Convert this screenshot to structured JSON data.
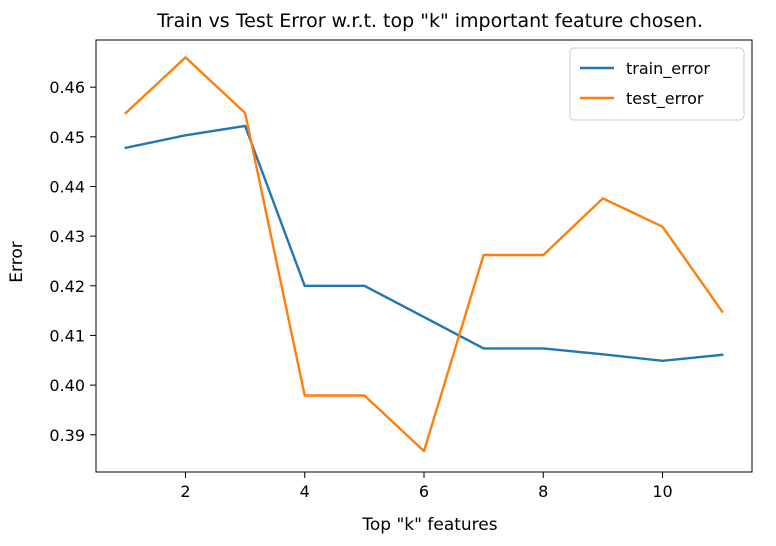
{
  "chart_data": {
    "type": "line",
    "title": "Train vs Test Error w.r.t. top \"k\" important feature chosen.",
    "xlabel": "Top \"k\" features",
    "ylabel": "Error",
    "xlim": [
      0.5,
      11.5
    ],
    "ylim": [
      0.3825,
      0.4695
    ],
    "xticks": [
      2,
      4,
      6,
      8,
      10
    ],
    "xtick_labels": [
      "2",
      "4",
      "6",
      "8",
      "10"
    ],
    "yticks": [
      0.39,
      0.4,
      0.41,
      0.42,
      0.43,
      0.44,
      0.45,
      0.46
    ],
    "ytick_labels": [
      "0.39",
      "0.40",
      "0.41",
      "0.42",
      "0.43",
      "0.44",
      "0.45",
      "0.46"
    ],
    "grid": false,
    "legend_position": "top-right",
    "x": [
      1,
      2,
      3,
      4,
      5,
      6,
      7,
      8,
      9,
      10,
      11
    ],
    "series": [
      {
        "name": "train_error",
        "color": "#1f77b4",
        "values": [
          0.4478,
          0.4503,
          0.4522,
          0.42,
          0.42,
          0.4137,
          0.4074,
          0.4074,
          0.4062,
          0.4049,
          0.4061
        ]
      },
      {
        "name": "test_error",
        "color": "#ff7f0e",
        "values": [
          0.4548,
          0.466,
          0.4548,
          0.3979,
          0.3979,
          0.3867,
          0.4262,
          0.4262,
          0.4376,
          0.4319,
          0.4148
        ]
      }
    ]
  }
}
